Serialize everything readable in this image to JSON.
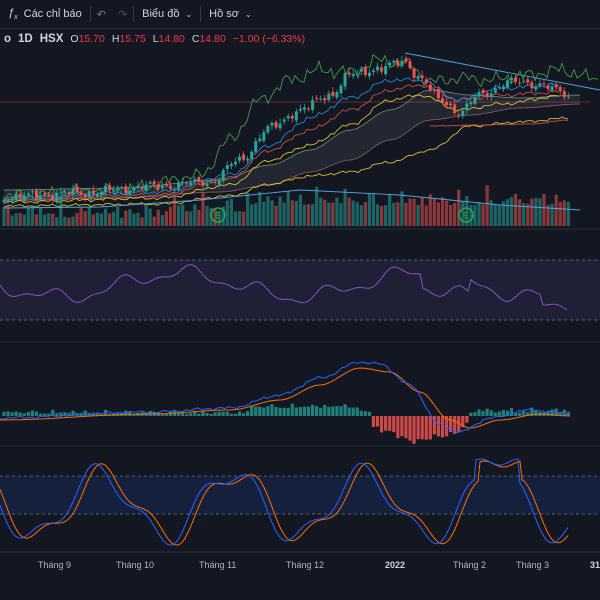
{
  "toolbar": {
    "indicators_label": "Các chỉ báo",
    "chart_label": "Biểu đồ",
    "profile_label": "Hồ sơ"
  },
  "legend": {
    "symbol_suffix": "o",
    "interval": "1D",
    "exchange": "HSX",
    "open_key": "O",
    "open_val": "15.70",
    "high_key": "H",
    "high_val": "15.75",
    "low_key": "L",
    "low_val": "14.80",
    "close_key": "C",
    "close_val": "14.80",
    "change": "−1.00 (−6.33%)"
  },
  "time_axis": [
    "Tháng 9",
    "Tháng 10",
    "Tháng 11",
    "Tháng 12",
    "2022",
    "Tháng 2",
    "Tháng 3",
    "31"
  ],
  "markers": [
    "E",
    "E"
  ],
  "colors": {
    "background": "#131722",
    "up": "#26a69a",
    "down": "#ef5350",
    "rsi": "#7e57c2",
    "macd": "#2962ff",
    "signal": "#ff6d00",
    "stoch_k": "#2962ff",
    "stoch_d": "#ff6d00",
    "marker": "#22ab4c"
  },
  "chart_data": {
    "type": "candlestick",
    "x": [
      "Tháng 9",
      "Tháng 10",
      "Tháng 11",
      "Tháng 12",
      "2022",
      "Tháng 2",
      "Tháng 3"
    ],
    "close": [
      6.2,
      6.4,
      6.9,
      9.8,
      14.9,
      12.9,
      14.8
    ],
    "last": {
      "open": 15.7,
      "high": 15.75,
      "low": 14.8,
      "close": 14.8
    },
    "panes": [
      "price+volume",
      "rsi",
      "macd",
      "stochastic"
    ]
  }
}
